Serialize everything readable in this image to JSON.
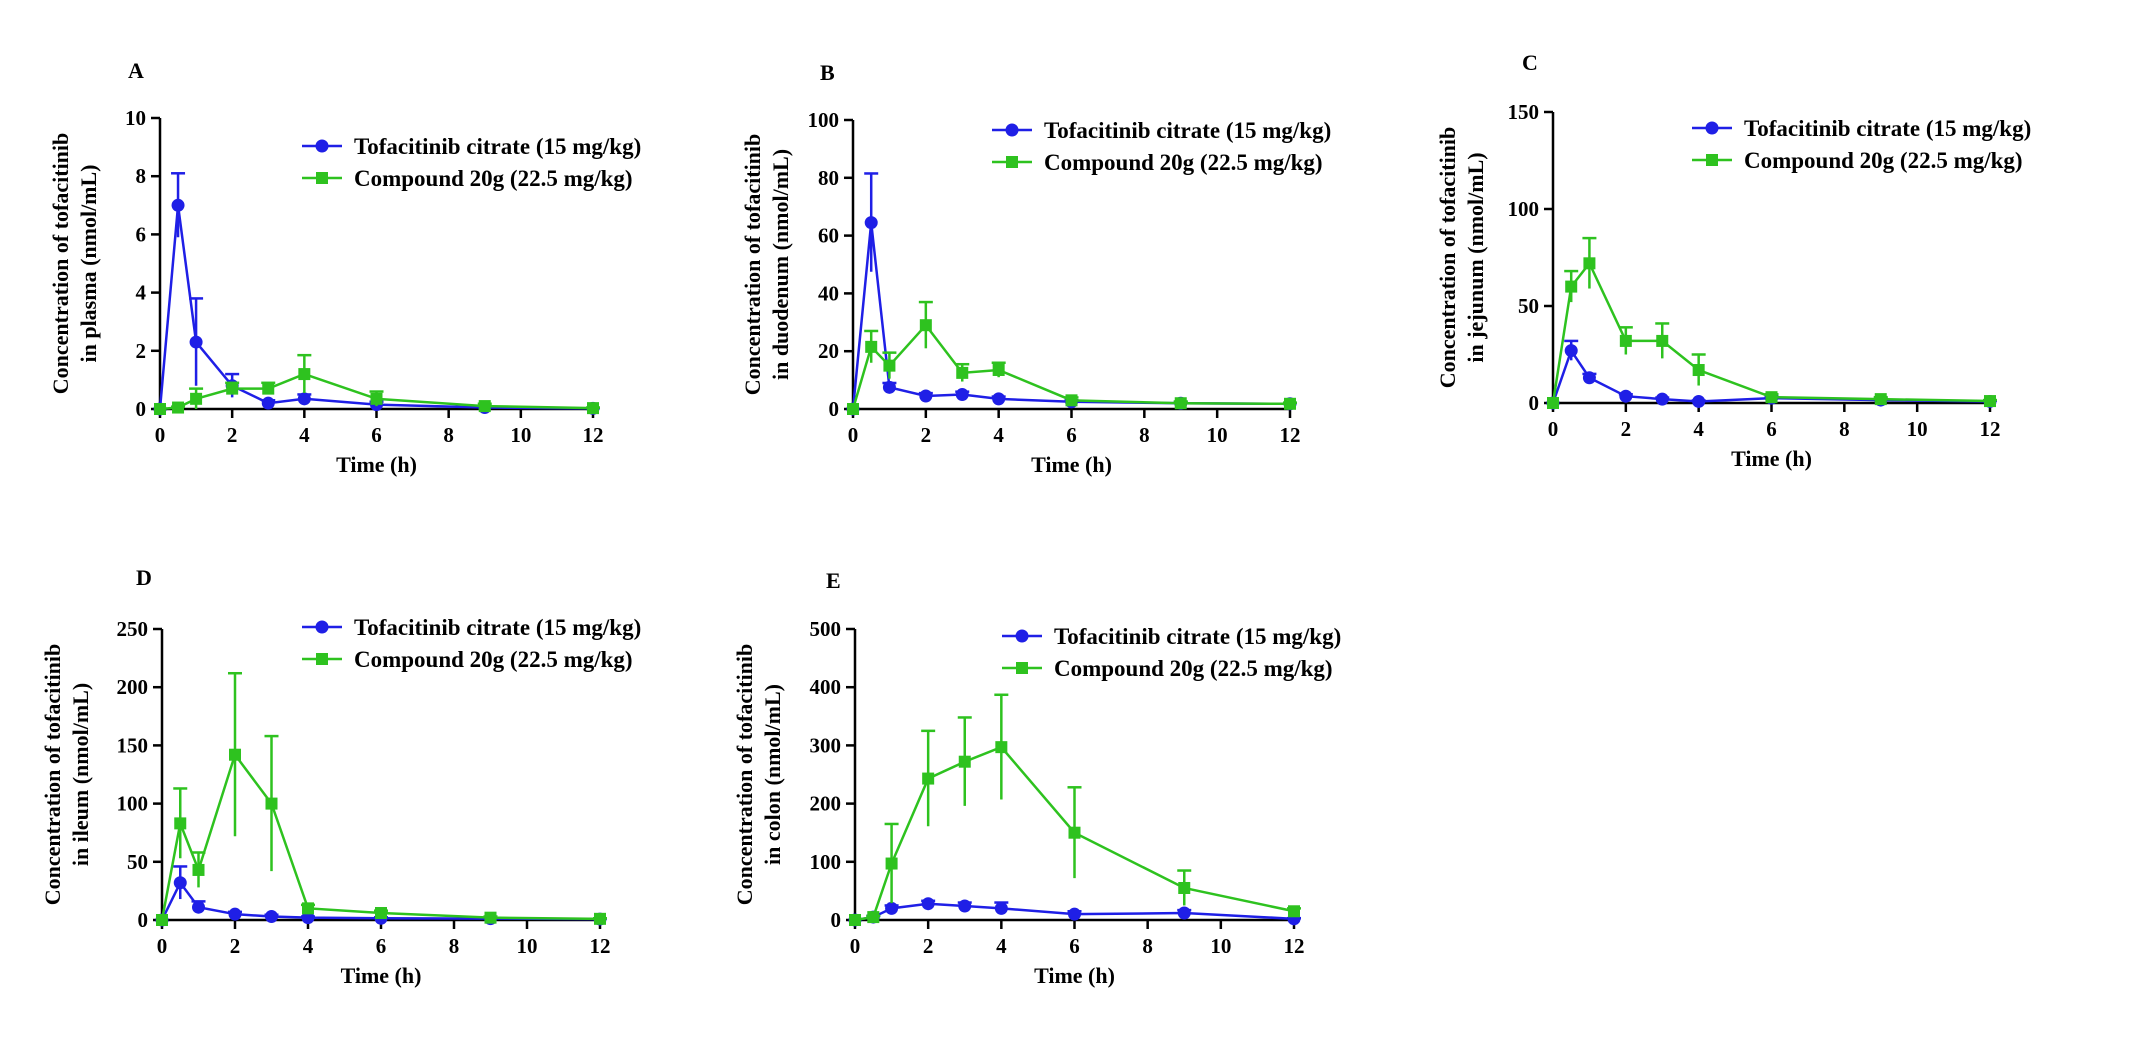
{
  "figure": {
    "colors": {
      "tofacitinib": "#1f1fe6",
      "compound": "#2ec21f"
    },
    "legend": {
      "tofacitinib": "Tofacitinib citrate (15 mg/kg)",
      "compound": "Compound 20g (22.5 mg/kg)"
    }
  },
  "chart_data": [
    {
      "type": "line",
      "panel": "A",
      "xlabel": "Time (h)",
      "ylabel_line1": "Concentration of tofacitinib",
      "ylabel_line2": "in plasma (nmol/mL)",
      "xlim": [
        0,
        12
      ],
      "ylim": [
        0,
        10
      ],
      "xticks": [
        0,
        2,
        4,
        6,
        8,
        10,
        12
      ],
      "yticks": [
        0,
        2,
        4,
        6,
        8,
        10
      ],
      "legend_position": "top-right",
      "series": [
        {
          "name": "Tofacitinib citrate (15 mg/kg)",
          "key": "tofacitinib",
          "marker": "circle",
          "x": [
            0,
            0.5,
            1,
            2,
            3,
            4,
            6,
            9,
            12
          ],
          "y": [
            0,
            7.0,
            2.3,
            0.8,
            0.2,
            0.35,
            0.15,
            0.05,
            0.02
          ],
          "err": [
            0,
            1.1,
            1.5,
            0.4,
            0.1,
            0.15,
            0.1,
            0.03,
            0.01
          ]
        },
        {
          "name": "Compound 20g (22.5 mg/kg)",
          "key": "compound",
          "marker": "square",
          "x": [
            0,
            0.5,
            1,
            2,
            3,
            4,
            6,
            9,
            12
          ],
          "y": [
            0,
            0.05,
            0.35,
            0.7,
            0.7,
            1.2,
            0.35,
            0.1,
            0.03
          ],
          "err": [
            0,
            0.03,
            0.35,
            0.2,
            0.2,
            0.65,
            0.25,
            0.08,
            0.02
          ]
        }
      ]
    },
    {
      "type": "line",
      "panel": "B",
      "xlabel": "Time (h)",
      "ylabel_line1": "Concentration of tofacitinib",
      "ylabel_line2": "in duodenum (nmol/mL)",
      "xlim": [
        0,
        12
      ],
      "ylim": [
        0,
        100
      ],
      "xticks": [
        0,
        2,
        4,
        6,
        8,
        10,
        12
      ],
      "yticks": [
        0,
        20,
        40,
        60,
        80,
        100
      ],
      "legend_position": "top-right",
      "series": [
        {
          "name": "Tofacitinib citrate (15 mg/kg)",
          "key": "tofacitinib",
          "marker": "circle",
          "x": [
            0,
            0.5,
            1,
            2,
            3,
            4,
            6,
            9,
            12
          ],
          "y": [
            0,
            64.5,
            7.5,
            4.5,
            5.0,
            3.5,
            2.5,
            2.0,
            1.8
          ],
          "err": [
            0,
            17,
            1.5,
            1.0,
            1.0,
            0.8,
            0.5,
            0.4,
            0.3
          ]
        },
        {
          "name": "Compound 20g (22.5 mg/kg)",
          "key": "compound",
          "marker": "square",
          "x": [
            0,
            0.5,
            1,
            2,
            3,
            4,
            6,
            9,
            12
          ],
          "y": [
            0,
            21.5,
            15.0,
            29.0,
            12.5,
            13.5,
            3.0,
            2.0,
            1.8
          ],
          "err": [
            0,
            5.5,
            4.5,
            8.0,
            3.0,
            2.5,
            1.0,
            0.6,
            0.4
          ]
        }
      ]
    },
    {
      "type": "line",
      "panel": "C",
      "xlabel": "Time (h)",
      "ylabel_line1": "Concentration of tofacitinib",
      "ylabel_line2": "in jejunum (nmol/mL)",
      "xlim": [
        0,
        12
      ],
      "ylim": [
        0,
        150
      ],
      "xticks": [
        0,
        2,
        4,
        6,
        8,
        10,
        12
      ],
      "yticks": [
        0,
        50,
        100,
        150
      ],
      "legend_position": "top-right",
      "series": [
        {
          "name": "Tofacitinib citrate (15 mg/kg)",
          "key": "tofacitinib",
          "marker": "circle",
          "x": [
            0,
            0.5,
            1,
            2,
            3,
            4,
            6,
            9,
            12
          ],
          "y": [
            0,
            27,
            13,
            3.5,
            2,
            0.8,
            2.5,
            1.5,
            0.8
          ],
          "err": [
            0,
            5,
            2,
            1,
            0.8,
            0.5,
            1,
            0.8,
            0.4
          ]
        },
        {
          "name": "Compound 20g (22.5 mg/kg)",
          "key": "compound",
          "marker": "square",
          "x": [
            0,
            0.5,
            1,
            2,
            3,
            4,
            6,
            9,
            12
          ],
          "y": [
            0,
            60,
            72,
            32,
            32,
            17,
            3,
            2,
            1
          ],
          "err": [
            0,
            8,
            13,
            7,
            9,
            8,
            1.5,
            1,
            0.5
          ]
        }
      ]
    },
    {
      "type": "line",
      "panel": "D",
      "xlabel": "Time (h)",
      "ylabel_line1": "Concentration of tofacitinib",
      "ylabel_line2": "in ileum (nmol/mL)",
      "xlim": [
        0,
        12
      ],
      "ylim": [
        0,
        250
      ],
      "xticks": [
        0,
        2,
        4,
        6,
        8,
        10,
        12
      ],
      "yticks": [
        0,
        50,
        100,
        150,
        200,
        250
      ],
      "legend_position": "top-right",
      "series": [
        {
          "name": "Tofacitinib citrate (15 mg/kg)",
          "key": "tofacitinib",
          "marker": "circle",
          "x": [
            0,
            0.5,
            1,
            2,
            3,
            4,
            6,
            9,
            12
          ],
          "y": [
            0,
            32,
            11,
            5,
            3,
            2,
            1.5,
            1.2,
            0.8
          ],
          "err": [
            0,
            14,
            5,
            2,
            1.5,
            1,
            0.8,
            0.6,
            0.4
          ]
        },
        {
          "name": "Compound 20g (22.5 mg/kg)",
          "key": "compound",
          "marker": "square",
          "x": [
            0,
            0.5,
            1,
            2,
            3,
            4,
            6,
            9,
            12
          ],
          "y": [
            0,
            83,
            43,
            142,
            100,
            10,
            6,
            2,
            1
          ],
          "err": [
            0,
            30,
            15,
            70,
            58,
            3,
            2,
            1,
            0.5
          ]
        }
      ]
    },
    {
      "type": "line",
      "panel": "E",
      "xlabel": "Time (h)",
      "ylabel_line1": "Concentration of tofacitinib",
      "ylabel_line2": "in colon (nmol/mL)",
      "xlim": [
        0,
        12
      ],
      "ylim": [
        0,
        500
      ],
      "xticks": [
        0,
        2,
        4,
        6,
        8,
        10,
        12
      ],
      "yticks": [
        0,
        100,
        200,
        300,
        400,
        500
      ],
      "legend_position": "top-right",
      "series": [
        {
          "name": "Tofacitinib citrate (15 mg/kg)",
          "key": "tofacitinib",
          "marker": "circle",
          "x": [
            0,
            0.5,
            1,
            2,
            3,
            4,
            6,
            9,
            12
          ],
          "y": [
            0,
            5,
            20,
            28,
            24,
            20,
            10,
            12,
            2
          ],
          "err": [
            0,
            2,
            5,
            5,
            6,
            10,
            5,
            5,
            1
          ]
        },
        {
          "name": "Compound 20g (22.5 mg/kg)",
          "key": "compound",
          "marker": "square",
          "x": [
            0,
            0.5,
            1,
            2,
            3,
            4,
            6,
            9,
            12
          ],
          "y": [
            0,
            5,
            97,
            243,
            272,
            297,
            150,
            55,
            15
          ],
          "err": [
            0,
            2,
            68,
            82,
            76,
            90,
            78,
            30,
            5
          ]
        }
      ]
    }
  ]
}
